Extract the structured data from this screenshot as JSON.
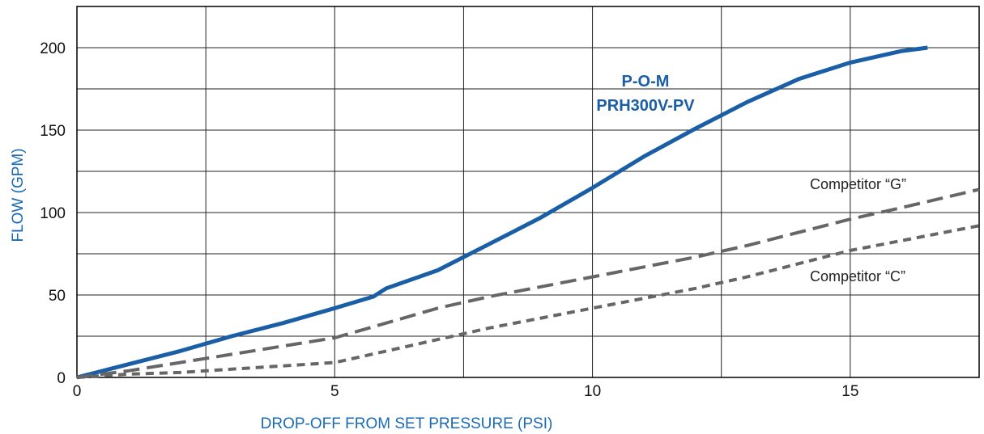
{
  "chart_data": {
    "type": "line",
    "title": "",
    "xlabel": "DROP-OFF FROM SET PRESSURE (PSI)",
    "ylabel": "FLOW (GPM)",
    "xlim": [
      0,
      17.5
    ],
    "ylim": [
      0,
      225
    ],
    "xticks": [
      0,
      5,
      10,
      15
    ],
    "yticks": [
      0,
      50,
      100,
      150,
      200
    ],
    "x_gridlines": [
      0,
      2.5,
      5,
      7.5,
      10,
      12.5,
      15,
      17.5
    ],
    "y_gridlines": [
      0,
      25,
      50,
      75,
      100,
      125,
      150,
      175,
      200,
      225
    ],
    "grid": true,
    "colors": {
      "pom": "#1a5fa6",
      "competitor": "#666666",
      "grid": "#222222",
      "axis_title": "#1a6ab4"
    },
    "series": [
      {
        "name": "P-O-M PRH300V-PV",
        "label_lines": [
          "P-O-M",
          "PRH300V-PV"
        ],
        "style": "solid",
        "x": [
          0,
          1,
          2,
          3,
          4,
          5,
          5.75,
          6,
          7,
          8,
          9,
          10,
          11,
          12,
          13,
          14,
          15,
          16,
          16.5
        ],
        "y": [
          0,
          8,
          16,
          25,
          33,
          42,
          49,
          54,
          65,
          81,
          97,
          115,
          134,
          151,
          167,
          181,
          191,
          198,
          200
        ]
      },
      {
        "name": "Competitor “G”",
        "style": "dashed",
        "x": [
          0,
          1,
          2,
          3,
          4,
          5,
          6,
          7,
          8,
          9,
          10,
          11,
          12,
          13,
          14,
          15,
          16,
          17.5
        ],
        "y": [
          0,
          4,
          9,
          14,
          19,
          24,
          33,
          42,
          49,
          55,
          61,
          67,
          73,
          80,
          88,
          96,
          103,
          114
        ]
      },
      {
        "name": "Competitor “C”",
        "style": "dotted",
        "x": [
          0,
          1,
          2,
          3,
          4,
          5,
          6,
          7,
          8,
          9,
          10,
          11,
          12,
          13,
          14,
          15,
          16,
          17.5
        ],
        "y": [
          0,
          2,
          3,
          5,
          7,
          9,
          16,
          23,
          30,
          36,
          42,
          48,
          54,
          61,
          69,
          77,
          83,
          92
        ]
      }
    ]
  }
}
